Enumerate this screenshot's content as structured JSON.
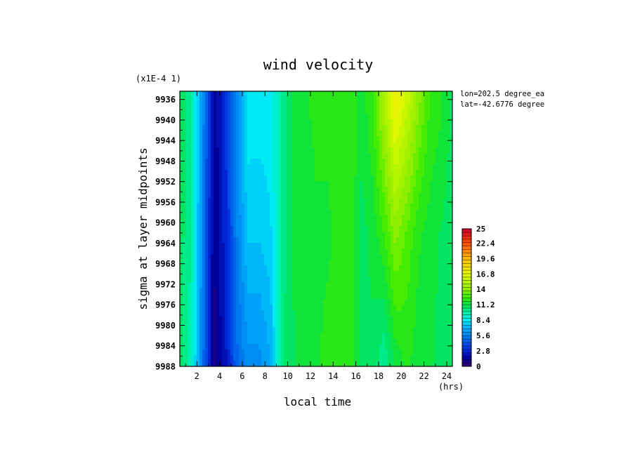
{
  "chart_data": {
    "type": "heatmap",
    "title": "wind velocity",
    "xlabel": "local time",
    "x_unit": "(hrs)",
    "ylabel": "sigma at layer midpoints",
    "y_scale_note": "(x1E-4 1)",
    "annotations": [
      "lon=202.5 degree_ea",
      "lat=-42.6776 degree"
    ],
    "x_ticks": [
      "2",
      "4",
      "6",
      "8",
      "10",
      "12",
      "14",
      "16",
      "18",
      "20",
      "22",
      "24"
    ],
    "y_ticks": [
      "9936",
      "9940",
      "9944",
      "9948",
      "9952",
      "9956",
      "9960",
      "9964",
      "9968",
      "9972",
      "9976",
      "9980",
      "9984",
      "9988"
    ],
    "xlim": [
      0.5,
      24.5
    ],
    "ylim": [
      9934.4,
      9988
    ],
    "x": [
      0.5,
      1.5,
      2.5,
      3.5,
      4.5,
      5.5,
      6.5,
      7.5,
      8.5,
      9.5,
      10.5,
      11.5,
      12.5,
      13.5,
      14.5,
      15.5,
      16.5,
      17.5,
      18.5,
      19.5,
      20.5,
      21.5,
      22.5,
      23.5,
      24.5
    ],
    "y": [
      9936,
      9962,
      9988
    ],
    "z": [
      [
        11.0,
        10.0,
        6.2,
        1.4,
        3.0,
        6.0,
        8.6,
        8.5,
        8.6,
        10.0,
        11.5,
        11.8,
        12.0,
        12.0,
        12.0,
        12.5,
        11.5,
        12.5,
        15.0,
        17.5,
        16.0,
        14.0,
        12.5,
        12.0,
        11.0
      ],
      [
        11.0,
        10.0,
        5.8,
        1.2,
        2.8,
        5.5,
        7.6,
        7.6,
        8.0,
        10.2,
        11.3,
        11.6,
        11.8,
        11.8,
        12.0,
        12.4,
        11.0,
        11.5,
        12.5,
        14.0,
        13.0,
        12.0,
        11.6,
        11.2,
        11.0
      ],
      [
        11.0,
        9.6,
        5.4,
        1.0,
        2.2,
        4.8,
        6.0,
        6.0,
        6.8,
        10.6,
        11.2,
        11.5,
        11.8,
        12.0,
        12.0,
        12.4,
        11.2,
        11.0,
        10.0,
        11.4,
        12.0,
        11.5,
        11.4,
        11.0,
        11.0
      ]
    ],
    "colorbar": {
      "labels": [
        "25",
        "22.4",
        "19.6",
        "16.8",
        "14",
        "11.2",
        "8.4",
        "5.6",
        "2.8",
        "0"
      ],
      "min": 0,
      "max": 25,
      "levels": 40
    }
  }
}
